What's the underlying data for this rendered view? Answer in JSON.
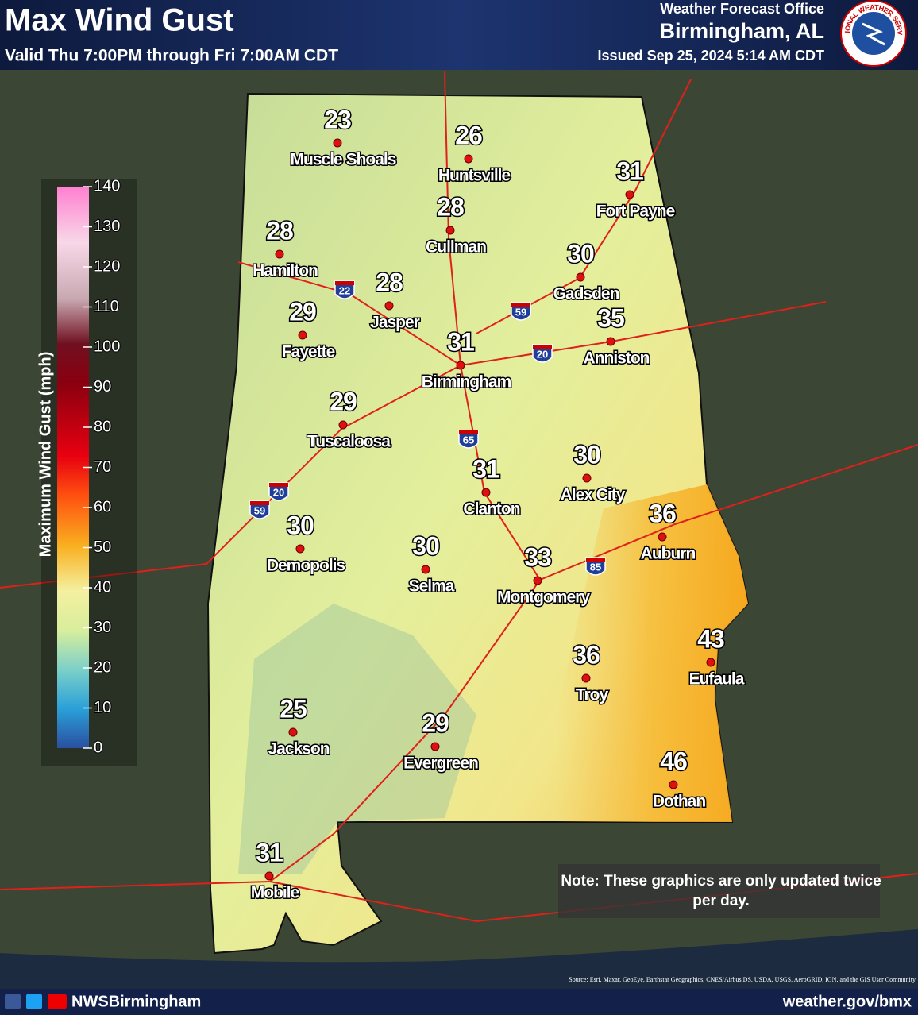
{
  "header": {
    "title": "Max Wind Gust",
    "valid": "Valid Thu 7:00PM through Fri 7:00AM CDT",
    "office": "Weather Forecast Office",
    "location": "Birmingham, AL",
    "issued": "Issued Sep 25, 2024 5:14 AM CDT",
    "seal": "NATIONAL WEATHER SERVICE"
  },
  "legend": {
    "title": "Maximum Wind Gust (mph)",
    "ticks": [
      0,
      10,
      20,
      30,
      40,
      50,
      60,
      70,
      80,
      90,
      100,
      110,
      120,
      130,
      140
    ]
  },
  "cities": [
    {
      "name": "Muscle Shoals",
      "value": 23
    },
    {
      "name": "Huntsville",
      "value": 26
    },
    {
      "name": "Fort Payne",
      "value": 31
    },
    {
      "name": "Cullman",
      "value": 28
    },
    {
      "name": "Hamilton",
      "value": 28
    },
    {
      "name": "Gadsden",
      "value": 30
    },
    {
      "name": "Jasper",
      "value": 28
    },
    {
      "name": "Fayette",
      "value": 29
    },
    {
      "name": "Anniston",
      "value": 35
    },
    {
      "name": "Birmingham",
      "value": 31
    },
    {
      "name": "Tuscaloosa",
      "value": 29
    },
    {
      "name": "Alex City",
      "value": 30
    },
    {
      "name": "Clanton",
      "value": 31
    },
    {
      "name": "Auburn",
      "value": 36
    },
    {
      "name": "Demopolis",
      "value": 30
    },
    {
      "name": "Selma",
      "value": 30
    },
    {
      "name": "Montgomery",
      "value": 33
    },
    {
      "name": "Troy",
      "value": 36
    },
    {
      "name": "Eufaula",
      "value": 43
    },
    {
      "name": "Jackson",
      "value": 25
    },
    {
      "name": "Evergreen",
      "value": 29
    },
    {
      "name": "Dothan",
      "value": 46
    },
    {
      "name": "Mobile",
      "value": 31
    }
  ],
  "interstates": [
    "22",
    "59",
    "20",
    "65",
    "20",
    "59",
    "85"
  ],
  "note": "Note: These graphics are only updated twice per day.",
  "source": "Source: Esri, Maxar, GeoEye, Earthstar Geographics, CNES/Airbus DS, USDA, USGS, AeroGRID, IGN, and the GIS User Community",
  "footer": {
    "handle": "NWSBirmingham",
    "url": "weather.gov/bmx"
  }
}
